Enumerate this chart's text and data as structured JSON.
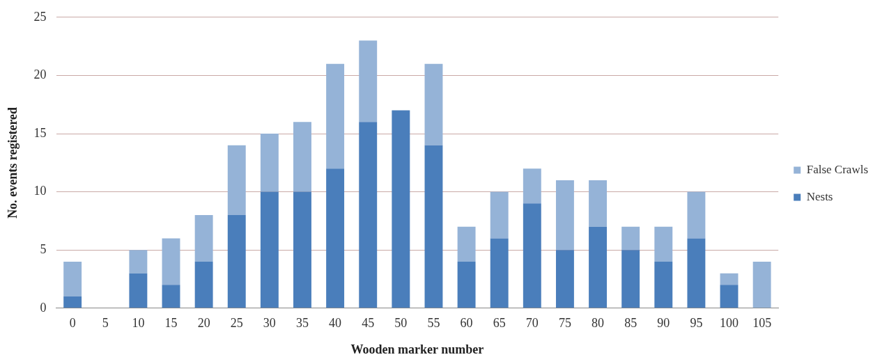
{
  "chart_data": {
    "type": "bar",
    "stacked": true,
    "xlabel": "Wooden marker number",
    "ylabel": "No. events registered",
    "categories": [
      "0",
      "5",
      "10",
      "15",
      "20",
      "25",
      "30",
      "35",
      "40",
      "45",
      "50",
      "55",
      "60",
      "65",
      "70",
      "75",
      "80",
      "85",
      "90",
      "95",
      "100",
      "105"
    ],
    "series": [
      {
        "name": "Nests",
        "color": "#4a7ebb",
        "values": [
          1,
          0,
          3,
          2,
          4,
          8,
          10,
          10,
          12,
          16,
          17,
          14,
          4,
          6,
          9,
          5,
          7,
          5,
          4,
          6,
          2,
          0
        ]
      },
      {
        "name": "False Crawls",
        "color": "#95b3d7",
        "values": [
          3,
          0,
          2,
          4,
          4,
          6,
          5,
          6,
          9,
          7,
          0,
          7,
          3,
          4,
          3,
          6,
          4,
          2,
          3,
          4,
          1,
          4
        ]
      }
    ],
    "ylim": [
      0,
      25
    ],
    "yticks": [
      0,
      5,
      10,
      15,
      20,
      25
    ],
    "grid": "y",
    "legend": "right"
  }
}
